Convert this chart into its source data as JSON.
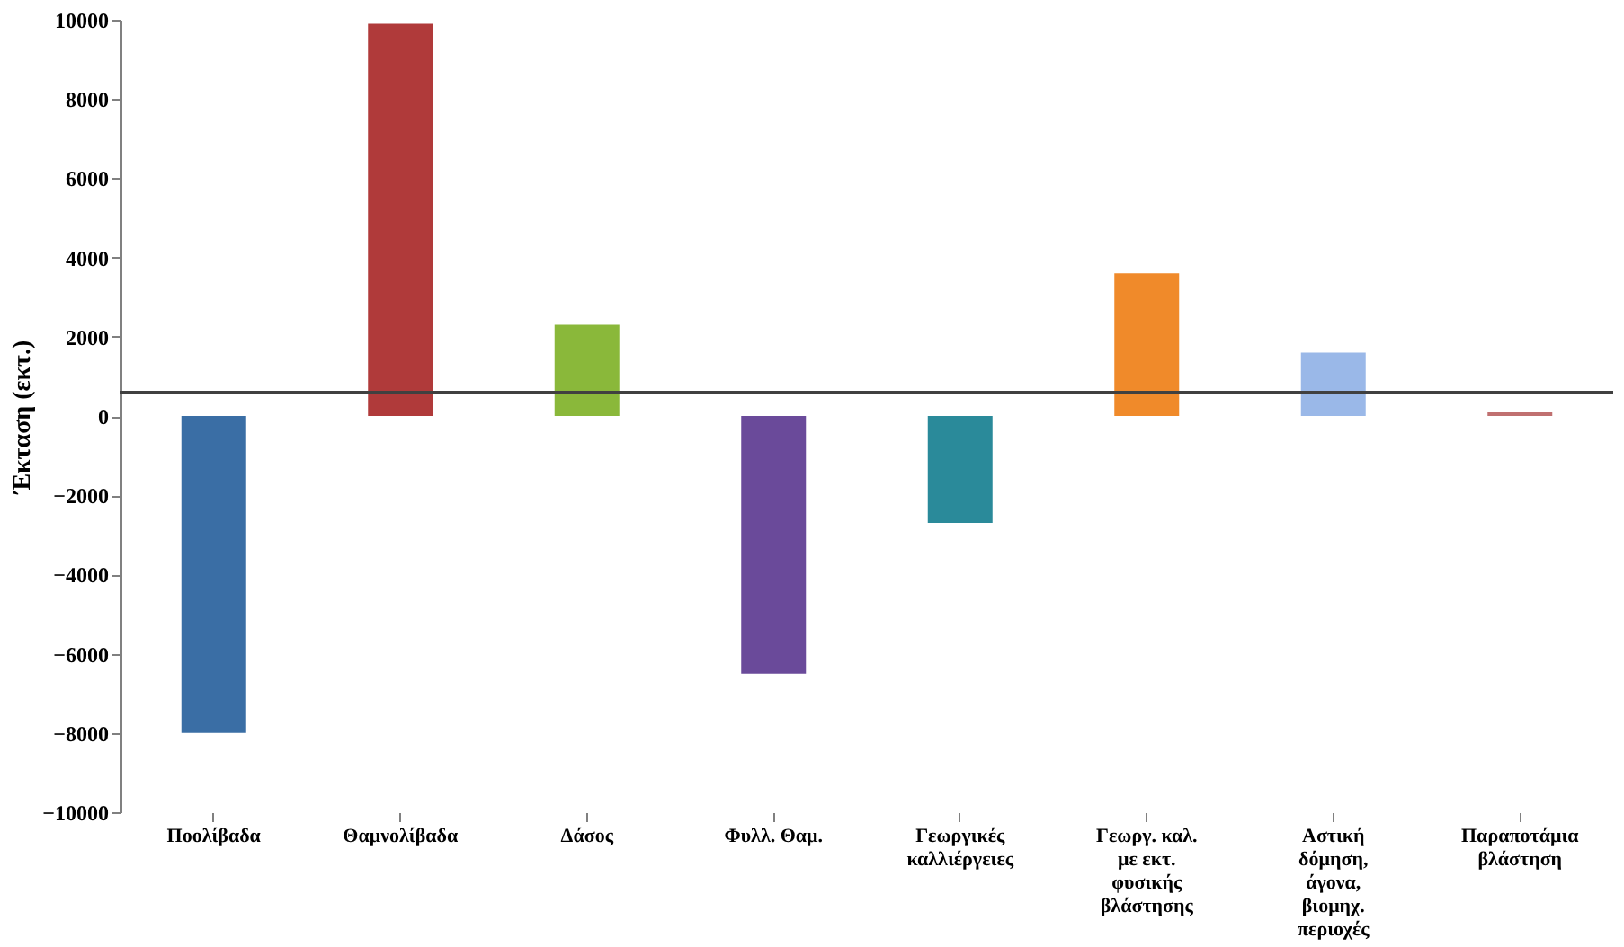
{
  "chart_data": {
    "type": "bar",
    "ylabel": "Έκταση (εκτ.)",
    "categories": [
      "Ποολίβαδα",
      "Θαμνολίβαδα",
      "Δάσος",
      "Φυλλ. Θαμ.",
      "Γεωργικές καλλιέργειες",
      "Γεωργ. καλ. με εκτ. φυσικής βλάστησης",
      "Αστική δόμηση, άγονα, βιομηχ. περιοχές",
      "Παραποτάμια βλάστηση"
    ],
    "values": [
      -8000,
      9900,
      2300,
      -6500,
      -2700,
      3600,
      1600,
      100
    ],
    "colors": [
      "#3a6ea5",
      "#b03a3a",
      "#8ab83a",
      "#6a4a9a",
      "#2a8a9a",
      "#f08a2a",
      "#9ab8e8",
      "#c07070"
    ],
    "ylim": [
      -10000,
      10000
    ],
    "yticks": [
      -10000,
      -8000,
      -6000,
      -4000,
      -2000,
      0,
      2000,
      4000,
      6000,
      8000,
      10000
    ],
    "ref_lines": [
      {
        "axis": "y",
        "value": 600,
        "color": "#404040"
      }
    ],
    "grid": false
  }
}
